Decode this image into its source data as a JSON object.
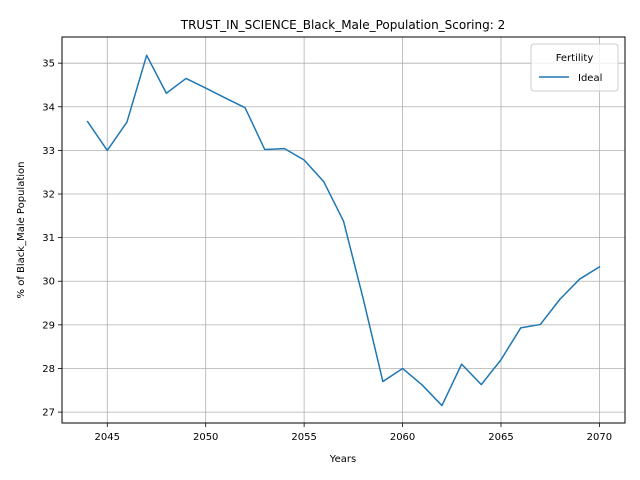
{
  "chart_data": {
    "type": "line",
    "title": "TRUST_IN_SCIENCE_Black_Male_Population_Scoring: 2",
    "xlabel": "Years",
    "ylabel": "% of Black_Male Population",
    "xlim": [
      2042.7,
      2071.3
    ],
    "ylim": [
      26.75,
      35.6
    ],
    "xticks": [
      2045,
      2050,
      2055,
      2060,
      2065,
      2070
    ],
    "yticks": [
      27,
      28,
      29,
      30,
      31,
      32,
      33,
      34,
      35
    ],
    "grid": true,
    "legend": {
      "title": "Fertility",
      "position": "top-right"
    },
    "series": [
      {
        "name": "Ideal",
        "color": "#1f77b4",
        "x": [
          2044,
          2045,
          2046,
          2047,
          2048,
          2049,
          2050,
          2051,
          2052,
          2053,
          2054,
          2055,
          2056,
          2057,
          2058,
          2059,
          2060,
          2061,
          2062,
          2063,
          2064,
          2065,
          2066,
          2067,
          2068,
          2069,
          2070
        ],
        "y": [
          33.66,
          33.0,
          33.65,
          35.18,
          34.31,
          34.65,
          34.43,
          34.2,
          33.98,
          33.02,
          33.04,
          32.78,
          32.28,
          31.38,
          29.6,
          27.7,
          28.0,
          27.62,
          27.15,
          28.1,
          27.63,
          28.2,
          28.93,
          29.01,
          29.59,
          30.05,
          30.33
        ]
      }
    ]
  }
}
